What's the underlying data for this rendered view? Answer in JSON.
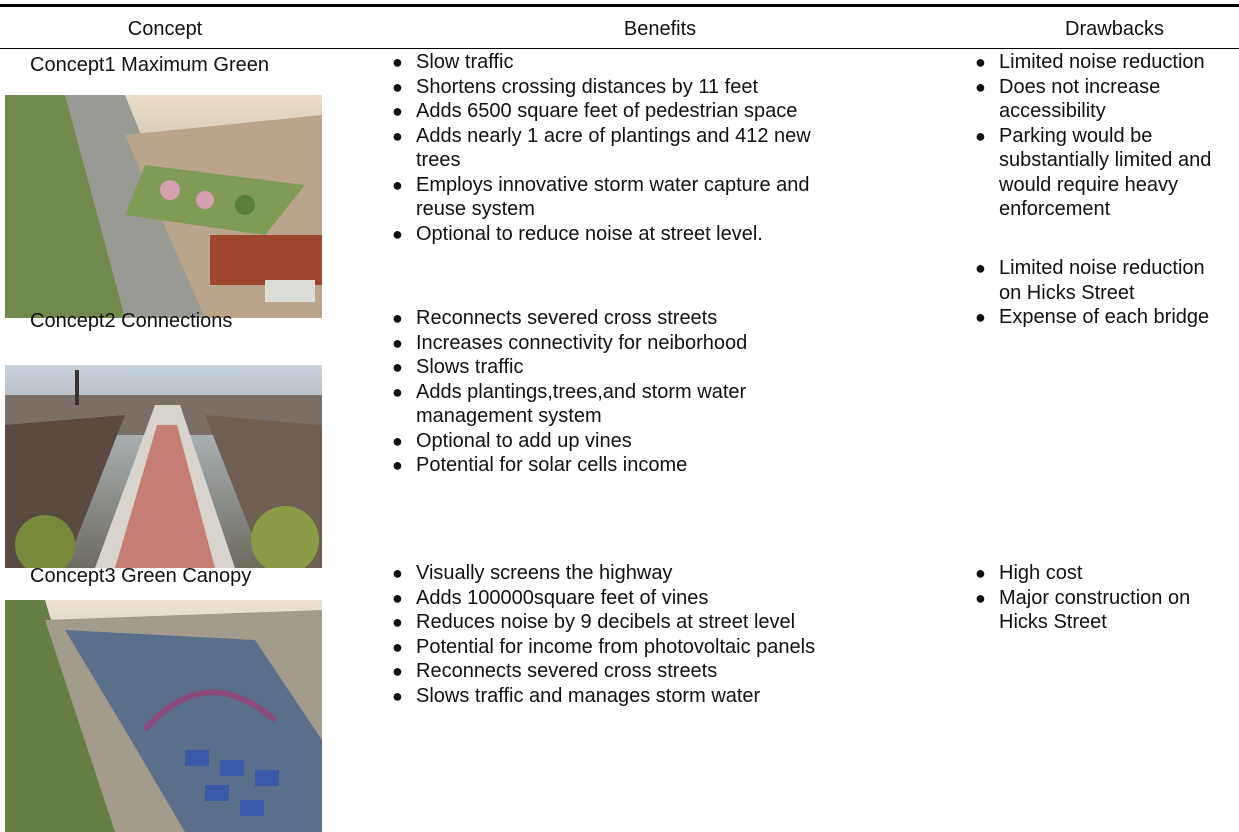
{
  "header": {
    "columns": [
      "Concept",
      "Benefits",
      "Drawbacks"
    ]
  },
  "rows": [
    {
      "concept": "Concept1 Maximum Green",
      "benefits": [
        "Slow traffic",
        "Shortens crossing distances by 11 feet",
        "Adds 6500 square feet of pedestrian space",
        "Adds nearly 1 acre of plantings and 412 new trees",
        "Employs innovative storm water capture and reuse system",
        "Optional to reduce noise at street level."
      ],
      "drawbacks": [
        "Limited noise reduction",
        "Does not increase accessibility",
        "Parking would be substantially limited and would require heavy enforcement"
      ]
    },
    {
      "concept": "Concept2 Connections",
      "benefits": [
        "Reconnects severed cross streets",
        "Increases connectivity for neiborhood",
        "Slows traffic",
        "Adds plantings,trees,and storm water management system",
        "Optional to add up vines",
        "Potential for solar cells income"
      ],
      "drawbacks": [
        "Limited noise reduction on Hicks Street",
        "Expense of each bridge"
      ]
    },
    {
      "concept": "Concept3 Green Canopy",
      "benefits": [
        "Visually screens the highway",
        "Adds 100000square feet of vines",
        "Reduces noise by 9 decibels at street level",
        "Potential for income from photovoltaic panels",
        "Reconnects severed cross streets",
        "Slows traffic and manages storm water"
      ],
      "drawbacks": [
        "High cost",
        "Major construction on Hicks Street"
      ]
    }
  ]
}
